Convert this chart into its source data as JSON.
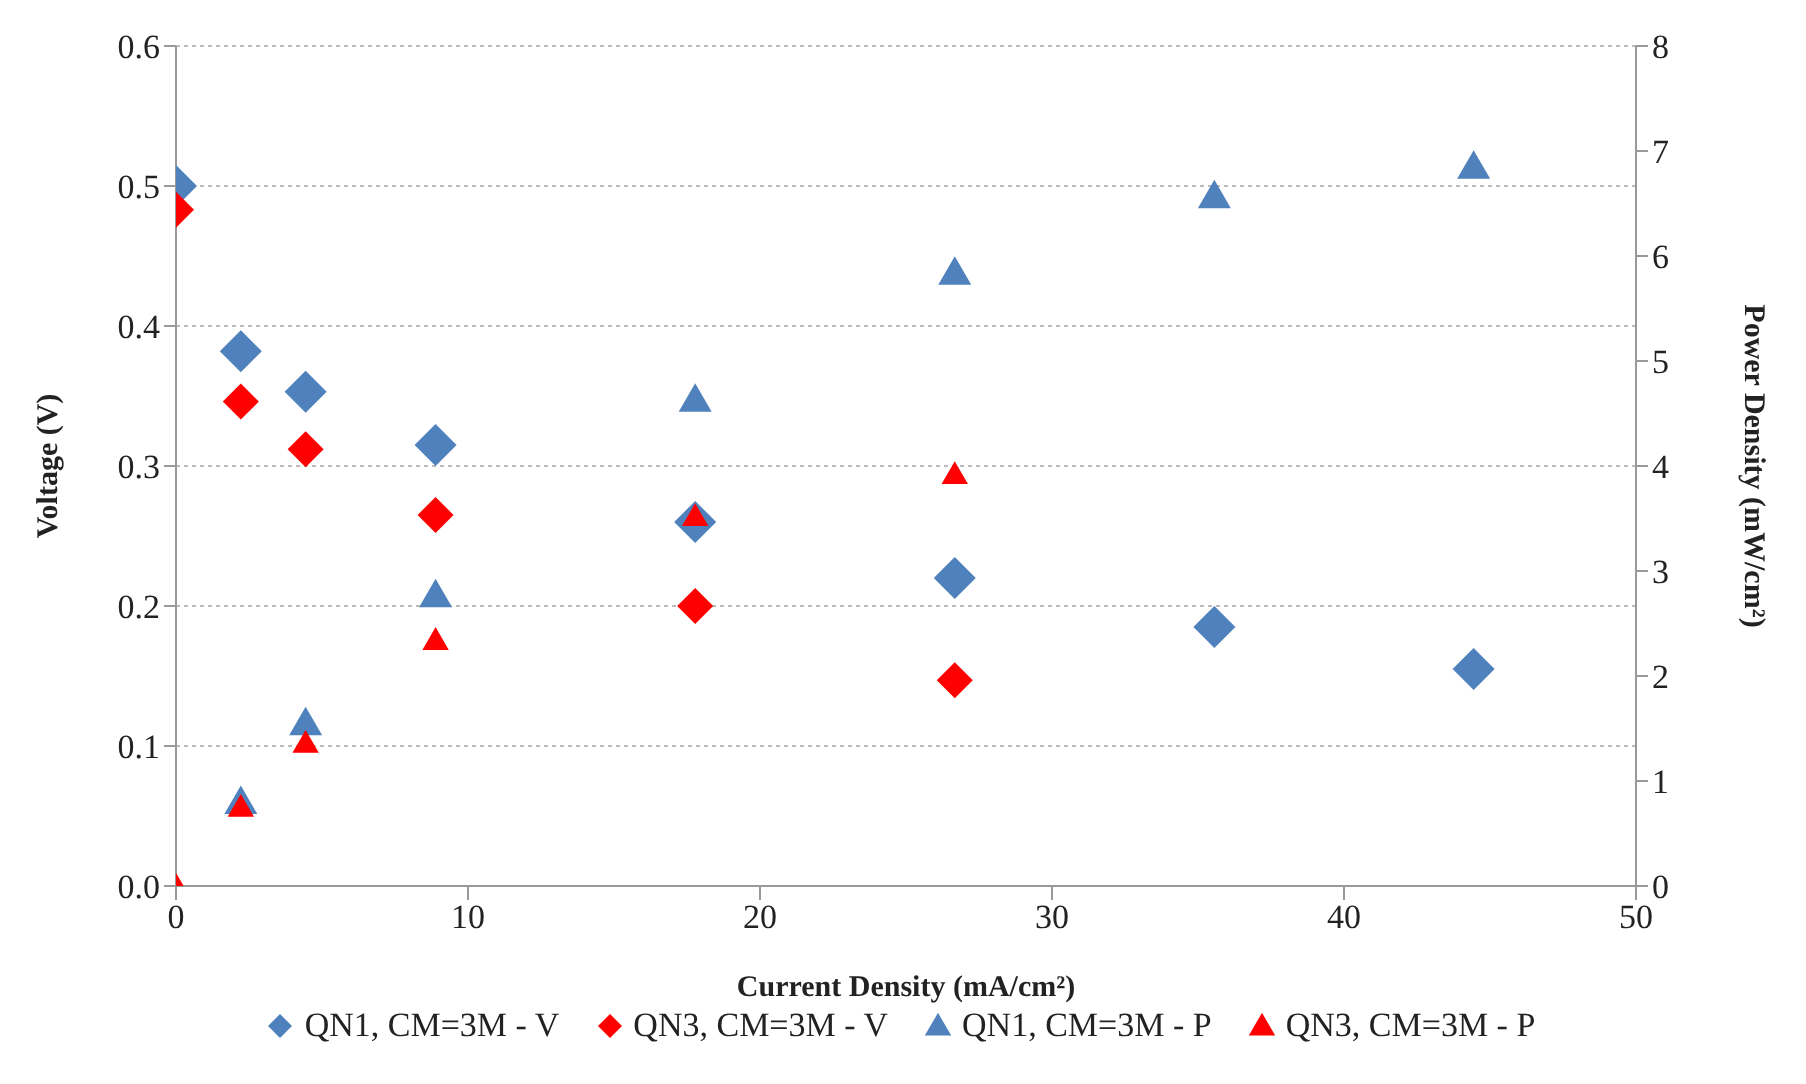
{
  "chart_data": {
    "type": "scatter",
    "xlabel": "Current Density (mA/cm²)",
    "ylabel": "Voltage (V)",
    "y2label": "Power Density (mW/cm²)",
    "x": [
      0,
      2.22,
      4.44,
      8.89,
      17.78,
      26.67,
      35.56,
      44.44
    ],
    "series": [
      {
        "name": "QN1, CM=3M - V",
        "color": "#4f81bd",
        "marker": "diamond",
        "values": [
          0.5,
          0.382,
          0.353,
          0.315,
          0.26,
          0.22,
          0.185,
          0.155
        ]
      },
      {
        "name": "QN3, CM=3M - V",
        "color": "#ff0000",
        "marker": "diamond",
        "values": [
          0.483,
          0.346,
          0.312,
          0.265,
          0.2,
          0.147,
          null,
          null
        ]
      },
      {
        "name": "QN1, CM=3M - P",
        "color": "#4f81bd",
        "marker": "triangle",
        "axis": "y2",
        "values": [
          null,
          0.8,
          1.55,
          2.77,
          4.63,
          5.84,
          6.57,
          6.85
        ]
      },
      {
        "name": "QN3, CM=3M - P",
        "color": "#ff0000",
        "marker": "triangle",
        "axis": "y2",
        "values": [
          0,
          0.75,
          1.36,
          2.34,
          3.52,
          3.92,
          null,
          null
        ]
      }
    ],
    "xlim": [
      0,
      50
    ],
    "xticks": [
      0,
      10,
      20,
      30,
      40,
      50
    ],
    "ylim": [
      0,
      0.6
    ],
    "yticks": [
      {
        "value": 0,
        "label": "0.0"
      },
      0.1,
      0.2,
      0.3,
      0.4,
      0.5,
      0.6
    ],
    "y2lim": [
      0,
      8
    ],
    "y2ticks": [
      0,
      1,
      2,
      3,
      4,
      5,
      6,
      7,
      8
    ],
    "grid": "y",
    "legend": "bottom"
  }
}
